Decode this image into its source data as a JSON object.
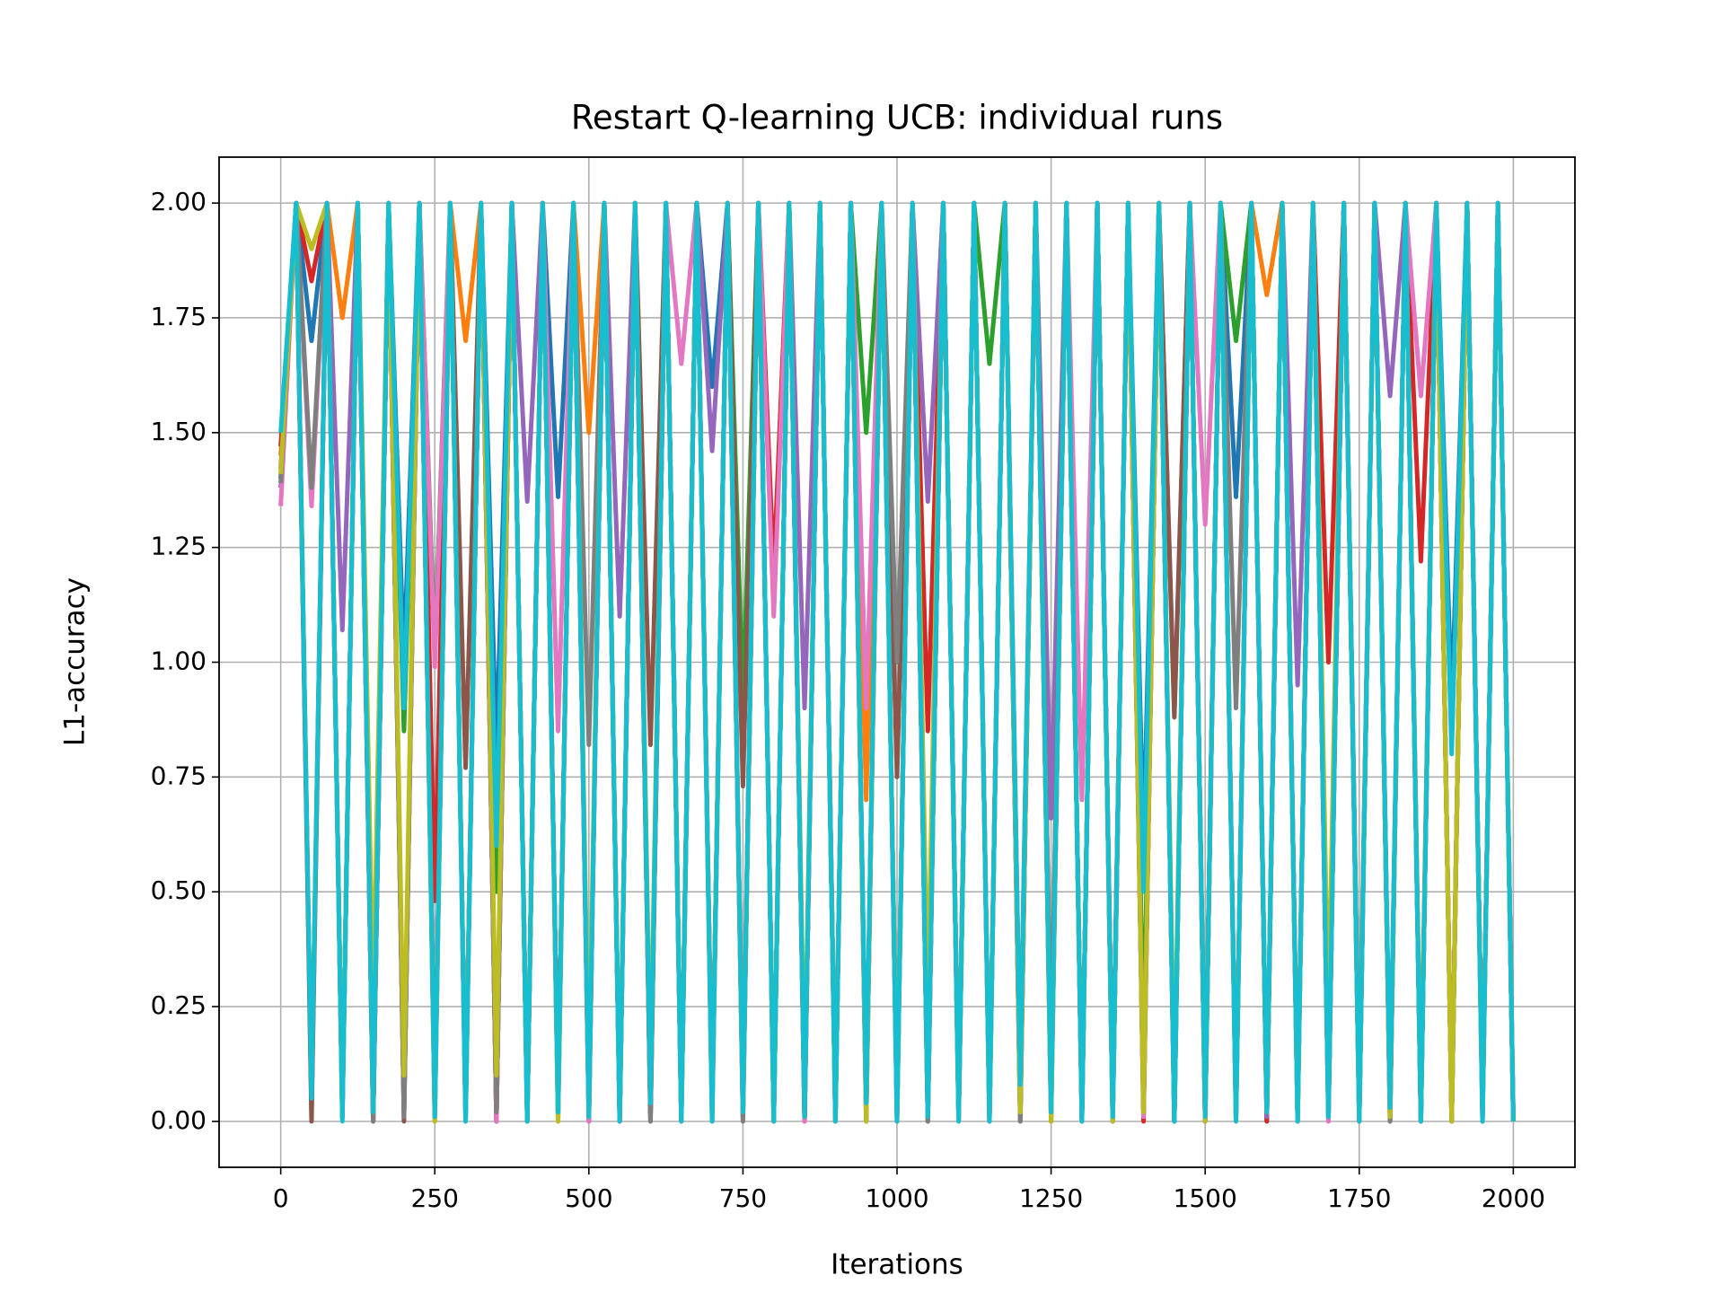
{
  "chart_data": {
    "type": "line",
    "title": "Restart Q-learning UCB: individual runs",
    "xlabel": "Iterations",
    "ylabel": "L1-accuracy",
    "x": [
      0,
      25,
      50,
      75,
      100,
      125,
      150,
      175,
      200,
      225,
      250,
      275,
      300,
      325,
      350,
      375,
      400,
      425,
      450,
      475,
      500,
      525,
      550,
      575,
      600,
      625,
      650,
      675,
      700,
      725,
      750,
      775,
      800,
      825,
      850,
      875,
      900,
      925,
      950,
      975,
      1000,
      1025,
      1050,
      1075,
      1100,
      1125,
      1150,
      1175,
      1200,
      1225,
      1250,
      1275,
      1300,
      1325,
      1350,
      1375,
      1400,
      1425,
      1450,
      1475,
      1500,
      1525,
      1550,
      1575,
      1600,
      1625,
      1650,
      1675,
      1700,
      1725,
      1750,
      1775,
      1800,
      1825,
      1850,
      1875,
      1900,
      1925,
      1950,
      1975,
      2000
    ],
    "xlim": [
      -100,
      2100
    ],
    "xticks": [
      0,
      250,
      500,
      750,
      1000,
      1250,
      1500,
      1750,
      2000
    ],
    "ylim": [
      -0.1,
      2.1
    ],
    "yticks": [
      {
        "value": 0,
        "label": "0.00"
      },
      {
        "value": 0.25,
        "label": "0.25"
      },
      {
        "value": 0.5,
        "label": "0.50"
      },
      {
        "value": 0.75,
        "label": "0.75"
      },
      {
        "value": 1,
        "label": "1.00"
      },
      {
        "value": 1.25,
        "label": "1.25"
      },
      {
        "value": 1.5,
        "label": "1.50"
      },
      {
        "value": 1.75,
        "label": "1.75"
      },
      {
        "value": 2,
        "label": "2.00"
      }
    ],
    "grid": true,
    "series": [
      {
        "color": "#1f77b4",
        "values": [
          1.4,
          2,
          1.7,
          2,
          0.02,
          2,
          0.03,
          2,
          1.0,
          2,
          0.01,
          2,
          0.02,
          2,
          0.8,
          2,
          0.0,
          2,
          1.36,
          2,
          0.02,
          2,
          0.0,
          2,
          0.05,
          2,
          0.01,
          2,
          1.6,
          2,
          0.02,
          2,
          0.0,
          2,
          0.03,
          2,
          0.01,
          2,
          0.05,
          2,
          0.0,
          2,
          0.02,
          2,
          0.01,
          2,
          0.0,
          2,
          0.1,
          2,
          0.02,
          2,
          0.01,
          2,
          0.0,
          2,
          0.6,
          2,
          0.0,
          2,
          0.02,
          2,
          1.36,
          2,
          0.0,
          2,
          0.02,
          2,
          0.01,
          2,
          0.0,
          2,
          0.04,
          2,
          0.0,
          2,
          0.9,
          2,
          0.0,
          2,
          0.01
        ]
      },
      {
        "color": "#ff7f0e",
        "values": [
          1.45,
          2,
          0.05,
          2,
          1.75,
          2,
          0.01,
          2,
          0.02,
          2,
          0.0,
          2,
          1.7,
          2,
          0.03,
          2,
          0.0,
          2,
          0.02,
          2,
          1.5,
          2,
          0.01,
          2,
          0.0,
          2,
          0.02,
          2,
          0.03,
          2,
          0.0,
          2,
          0.01,
          2,
          0.0,
          2,
          0.02,
          2,
          0.7,
          2,
          0.0,
          2,
          0.01,
          2,
          0.02,
          2,
          0.0,
          2,
          0.09,
          2,
          0.01,
          2,
          0.0,
          2,
          0.03,
          2,
          0.02,
          2,
          0.0,
          2,
          0.03,
          2,
          0.0,
          2,
          1.8,
          2,
          0.0,
          2,
          0.02,
          2,
          0.01,
          2,
          0.0,
          2,
          0.05,
          2,
          0.0,
          2,
          0.01,
          2,
          0.0
        ]
      },
      {
        "color": "#2ca02c",
        "values": [
          1.4,
          2,
          0.04,
          2,
          0.02,
          2,
          0.0,
          2,
          0.85,
          2,
          1.02,
          2,
          0.01,
          2,
          0.5,
          2,
          0.0,
          2,
          0.02,
          2,
          0.03,
          2,
          0.01,
          2,
          0.0,
          2,
          0.02,
          2,
          0.0,
          2,
          0.91,
          2,
          0.0,
          2,
          0.01,
          2,
          0.03,
          2,
          1.5,
          2,
          0.02,
          2,
          0.0,
          2,
          0.01,
          2,
          1.65,
          2,
          0.0,
          2,
          0.02,
          2,
          0.01,
          2,
          0.0,
          2,
          0.15,
          2,
          0.0,
          2,
          0.02,
          2,
          1.7,
          2,
          0.0,
          2,
          0.01,
          2,
          0.02,
          2,
          0.05,
          2,
          0.0,
          2,
          0.01,
          2,
          0.0,
          2,
          0.02,
          2,
          0.0
        ]
      },
      {
        "color": "#d62728",
        "values": [
          1.47,
          2,
          1.83,
          2,
          0.01,
          2,
          0.0,
          2,
          0.03,
          2,
          0.48,
          2,
          0.02,
          2,
          0.0,
          2,
          0.01,
          2,
          0.03,
          2,
          0.02,
          2,
          0.0,
          2,
          0.01,
          2,
          0.0,
          2,
          0.02,
          2,
          0.04,
          2,
          1.2,
          2,
          0.0,
          2,
          0.01,
          2,
          0.0,
          2,
          0.02,
          2,
          0.85,
          2,
          0.0,
          2,
          0.01,
          2,
          0.02,
          2,
          0.0,
          2,
          0.01,
          2,
          0.03,
          2,
          0.0,
          2,
          0.02,
          2,
          0.0,
          2,
          0.01,
          2,
          0.0,
          2,
          0.02,
          2,
          1.0,
          2,
          0.0,
          2,
          0.01,
          2,
          1.22,
          2,
          0.0,
          2,
          0.02,
          2,
          0.0
        ]
      },
      {
        "color": "#9467bd",
        "values": [
          1.38,
          2,
          0.02,
          2,
          1.07,
          2,
          0.0,
          2,
          0.01,
          2,
          0.02,
          2,
          0.03,
          2,
          0.0,
          2,
          1.35,
          2,
          0.01,
          2,
          0.0,
          2,
          1.1,
          2,
          0.02,
          2,
          0.0,
          2,
          1.46,
          2,
          0.01,
          2,
          0.0,
          2,
          0.9,
          2,
          0.02,
          2,
          0.0,
          2,
          0.01,
          2,
          1.35,
          2,
          0.02,
          2,
          0.0,
          2,
          0.01,
          2,
          0.66,
          2,
          0.0,
          2,
          0.02,
          2,
          0.01,
          2,
          0.89,
          2,
          0.0,
          2,
          0.02,
          2,
          0.01,
          2,
          0.95,
          2,
          0.0,
          2,
          0.02,
          2,
          1.58,
          2,
          0.0,
          2,
          0.01,
          2,
          0.02,
          2,
          0.0
        ]
      },
      {
        "color": "#8c564b",
        "values": [
          1.42,
          2,
          0.0,
          2,
          0.01,
          2,
          0.02,
          2,
          0.0,
          2,
          0.03,
          2,
          0.77,
          2,
          0.0,
          2,
          0.01,
          2,
          0.02,
          2,
          0.0,
          2,
          0.01,
          2,
          0.82,
          2,
          0.0,
          2,
          0.02,
          2,
          0.73,
          2,
          0.0,
          2,
          0.01,
          2,
          0.0,
          2,
          0.02,
          2,
          0.75,
          2,
          0.0,
          2,
          0.01,
          2,
          0.02,
          2,
          0.0,
          2,
          0.13,
          2,
          0.01,
          2,
          0.0,
          2,
          0.02,
          2,
          0.88,
          2,
          0.0,
          2,
          0.01,
          2,
          0.02,
          2,
          0.0,
          2,
          0.01,
          2,
          0.0,
          2,
          0.02,
          2,
          0.0,
          2,
          0.01,
          2,
          0.02,
          2,
          0.0
        ]
      },
      {
        "color": "#e377c2",
        "values": [
          1.34,
          2,
          1.34,
          2,
          0.01,
          2,
          0.0,
          2,
          0.02,
          2,
          0.99,
          2,
          0.01,
          2,
          0.0,
          2,
          0.02,
          2,
          0.85,
          2,
          0.0,
          2,
          0.01,
          2,
          0.02,
          2,
          1.65,
          2,
          0.0,
          2,
          0.01,
          2,
          1.1,
          2,
          0.0,
          2,
          0.02,
          2,
          0.9,
          2,
          0.01,
          2,
          0.0,
          2,
          0.02,
          2,
          0.01,
          2,
          0.0,
          2,
          0.02,
          2,
          0.7,
          2,
          0.0,
          2,
          0.01,
          2,
          0.02,
          2,
          1.3,
          2,
          0.0,
          2,
          0.02,
          2,
          0.01,
          2,
          0.0,
          2,
          0.03,
          2,
          0.0,
          2,
          1.58,
          2,
          0.01,
          2,
          0.0,
          2,
          0.02
        ]
      },
      {
        "color": "#7f7f7f",
        "values": [
          1.39,
          2,
          1.38,
          2,
          0.02,
          2,
          0.0,
          2,
          0.01,
          2,
          0.03,
          2,
          0.0,
          2,
          0.02,
          2,
          0.01,
          2,
          0.0,
          2,
          0.82,
          2,
          0.02,
          2,
          0.0,
          2,
          0.01,
          2,
          0.03,
          2,
          0.0,
          2,
          0.02,
          2,
          0.01,
          2,
          0.0,
          2,
          0.02,
          2,
          1.0,
          2,
          0.0,
          2,
          0.01,
          2,
          0.02,
          2,
          0.0,
          2,
          0.13,
          2,
          0.0,
          2,
          0.01,
          2,
          0.02,
          2,
          0.0,
          2,
          0.01,
          2,
          0.9,
          2,
          0.02,
          2,
          0.0,
          2,
          0.01,
          2,
          0.02,
          2,
          0.0,
          2,
          0.01,
          2,
          0.0,
          2,
          0.02,
          2,
          0.0
        ]
      },
      {
        "color": "#bcbd22",
        "values": [
          1.41,
          2,
          1.9,
          2,
          0.02,
          2,
          0.25,
          2,
          0.1,
          2,
          0.0,
          2,
          0.02,
          2,
          0.1,
          2,
          0.01,
          2,
          0.0,
          2,
          0.08,
          2,
          0.02,
          2,
          0.1,
          2,
          0.0,
          2,
          0.01,
          2,
          0.02,
          2,
          0.0,
          2,
          0.07,
          2,
          0.01,
          2,
          0.0,
          2,
          0.02,
          2,
          0.25,
          2,
          0.0,
          2,
          0.01,
          2,
          0.02,
          2,
          0.0,
          2,
          0.01,
          2,
          0.0,
          2,
          0.02,
          2,
          0.06,
          2,
          0.0,
          2,
          0.01,
          2,
          0.02,
          2,
          0.0,
          2,
          0.22,
          2,
          0.0,
          2,
          0.01,
          2,
          0.02,
          2,
          0.0,
          2,
          0.01,
          2,
          0.0
        ]
      },
      {
        "color": "#17becf",
        "values": [
          1.5,
          2.0,
          0.05,
          2.0,
          0.0,
          2.0,
          0.02,
          2.0,
          0.9,
          2.0,
          0.01,
          2.0,
          0.0,
          2.0,
          0.6,
          2.0,
          0.0,
          2.0,
          0.02,
          2.0,
          0.01,
          2.0,
          0.0,
          2.0,
          0.04,
          2.0,
          0.0,
          2.0,
          0.0,
          2.0,
          0.02,
          2.0,
          0.0,
          2.0,
          0.01,
          2.0,
          0.0,
          2.0,
          0.04,
          2.0,
          0.0,
          2.0,
          0.01,
          2.0,
          0.0,
          2.0,
          0.0,
          2.0,
          0.08,
          2.0,
          0.02,
          2.0,
          0.0,
          2.0,
          0.01,
          2.0,
          0.5,
          2.0,
          0.0,
          2.0,
          0.01,
          2.0,
          0.0,
          2.0,
          0.02,
          2.0,
          0.0,
          2.0,
          0.01,
          2.0,
          0.0,
          2.0,
          0.03,
          2.0,
          0.0,
          2.0,
          0.8,
          2.0,
          0.0,
          2.0,
          0.0
        ]
      }
    ]
  }
}
